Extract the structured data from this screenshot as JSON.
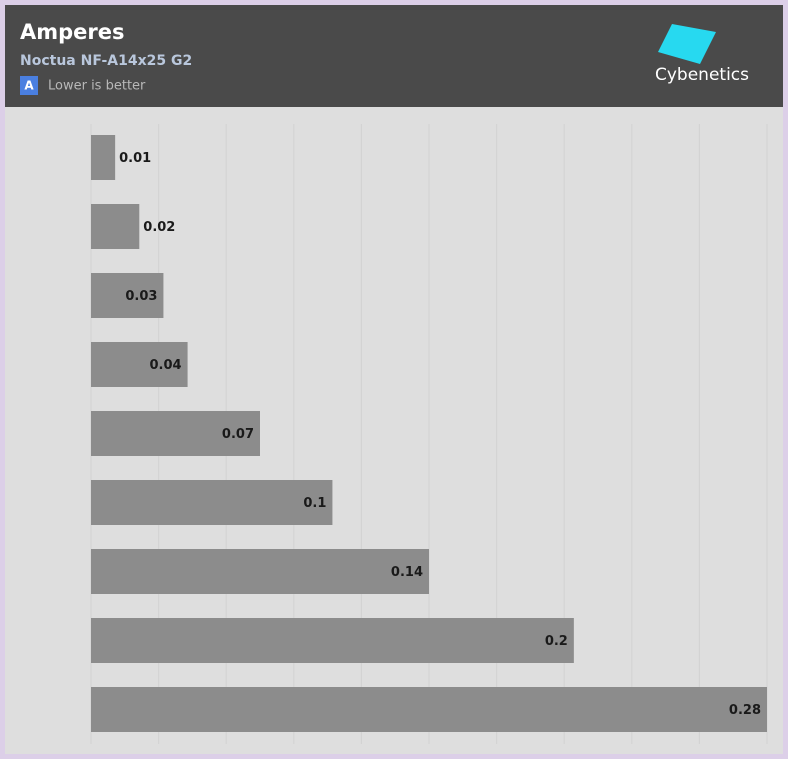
{
  "chart_data": {
    "type": "bar",
    "orientation": "horizontal",
    "title": "Amperes",
    "subtitle": "Noctua NF-A14x25 G2",
    "badge": "A",
    "note": "Lower is better",
    "brand": "Cybenetics",
    "values": [
      0.01,
      0.02,
      0.03,
      0.04,
      0.07,
      0.1,
      0.14,
      0.2,
      0.28
    ],
    "color": "#8c8c8c",
    "xlim": [
      0,
      0.28
    ],
    "xticks": [
      0,
      0.028,
      0.056,
      0.084,
      0.112,
      0.14,
      0.168,
      0.196,
      0.224,
      0.252,
      0.28
    ],
    "grid": true
  }
}
